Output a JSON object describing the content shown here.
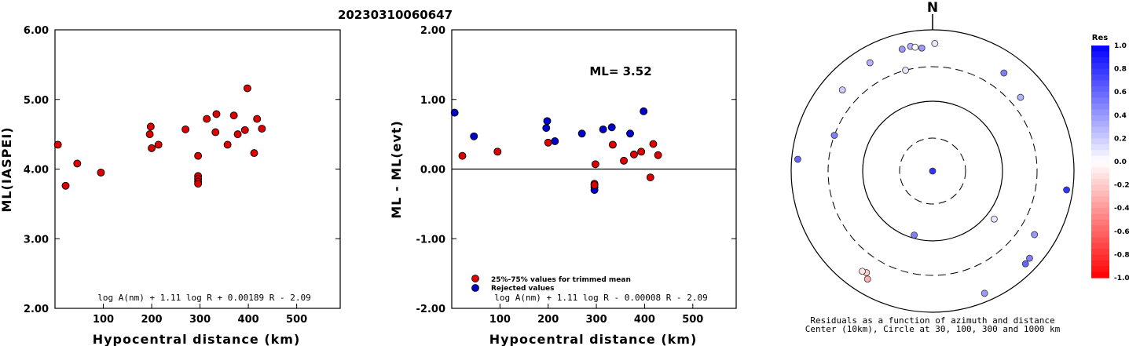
{
  "title": "20230310060647",
  "chart_data": [
    {
      "type": "scatter",
      "ylabel": "ML(IASPEI)",
      "xlabel": "Hypocentral distance (km)",
      "xlim": [
        0,
        590
      ],
      "ylim": [
        2.0,
        6.0
      ],
      "x_ticks": [
        "100",
        "200",
        "300",
        "400",
        "500"
      ],
      "y_ticks": [
        "6.00",
        "5.00",
        "4.00",
        "3.00",
        "2.00"
      ],
      "formula": "log A(nm) + 1.11 log R + 0.00189 R - 2.09",
      "color": "#dd0000",
      "points": [
        [
          6,
          4.35
        ],
        [
          22,
          3.76
        ],
        [
          46,
          4.08
        ],
        [
          95,
          3.95
        ],
        [
          196,
          4.5
        ],
        [
          198,
          4.61
        ],
        [
          200,
          4.3
        ],
        [
          214,
          4.35
        ],
        [
          270,
          4.57
        ],
        [
          296,
          4.19
        ],
        [
          296,
          3.9
        ],
        [
          296,
          3.86
        ],
        [
          296,
          3.82
        ],
        [
          296,
          3.79
        ],
        [
          314,
          4.72
        ],
        [
          332,
          4.53
        ],
        [
          334,
          4.79
        ],
        [
          357,
          4.35
        ],
        [
          370,
          4.77
        ],
        [
          378,
          4.5
        ],
        [
          393,
          4.56
        ],
        [
          398,
          5.16
        ],
        [
          412,
          4.23
        ],
        [
          418,
          4.72
        ],
        [
          428,
          4.58
        ]
      ]
    },
    {
      "type": "scatter",
      "ylabel": "ML - ML(evt)",
      "xlabel": "Hypocentral distance (km)",
      "xlim": [
        0,
        590
      ],
      "ylim": [
        -2.0,
        2.0
      ],
      "x_ticks": [
        "100",
        "200",
        "300",
        "400",
        "500"
      ],
      "y_ticks": [
        "2.00",
        "1.00",
        "0.00",
        "-1.00",
        "-2.00"
      ],
      "formula": "log A(nm) + 1.11 log R - 0.00008 R - 2.09",
      "annotation": "ML= 3.52",
      "legend": [
        {
          "label": "25%-75% values for trimmed mean",
          "color": "#dd0000"
        },
        {
          "label": "Rejected values",
          "color": "#0000cc"
        }
      ],
      "points_trimmed": [
        [
          22,
          0.19
        ],
        [
          95,
          0.25
        ],
        [
          200,
          0.38
        ],
        [
          298,
          0.07
        ],
        [
          296,
          -0.21
        ],
        [
          296,
          -0.23
        ],
        [
          334,
          0.35
        ],
        [
          357,
          0.12
        ],
        [
          378,
          0.21
        ],
        [
          393,
          0.25
        ],
        [
          412,
          -0.12
        ],
        [
          418,
          0.36
        ],
        [
          428,
          0.2
        ]
      ],
      "points_rejected": [
        [
          6,
          0.81
        ],
        [
          46,
          0.47
        ],
        [
          196,
          0.59
        ],
        [
          198,
          0.69
        ],
        [
          214,
          0.4
        ],
        [
          270,
          0.51
        ],
        [
          296,
          -0.26
        ],
        [
          296,
          -0.3
        ],
        [
          314,
          0.57
        ],
        [
          332,
          0.6
        ],
        [
          370,
          0.51
        ],
        [
          398,
          0.83
        ]
      ]
    },
    {
      "type": "polar-scatter",
      "north_label": "N",
      "caption_line1": "Residuals as a function of azimuth and distance",
      "caption_line2": "Center (10km), Circle at 30, 100, 300 and 1000 km",
      "colorbar_title": "Res",
      "colorbar_ticks": [
        "1.0",
        "0.8",
        "0.6",
        "0.4",
        "0.2",
        "0.0",
        "-0.2",
        "-0.4",
        "-0.6",
        "-0.8",
        "-1.0"
      ],
      "points": [
        {
          "az": 0,
          "dist": 10,
          "res": 0.8
        },
        {
          "az": 345,
          "dist": 300,
          "res": 0.1
        },
        {
          "az": 346,
          "dist": 600,
          "res": 0.4
        },
        {
          "az": 350,
          "dist": 620,
          "res": 0.3
        },
        {
          "az": 352,
          "dist": 590,
          "res": 0.0
        },
        {
          "az": 355,
          "dist": 560,
          "res": 0.4
        },
        {
          "az": 1,
          "dist": 640,
          "res": 0.1
        },
        {
          "az": 312,
          "dist": 520,
          "res": 0.2
        },
        {
          "az": 330,
          "dist": 590,
          "res": 0.3
        },
        {
          "az": 290,
          "dist": 300,
          "res": 0.5
        },
        {
          "az": 275,
          "dist": 820,
          "res": 0.6
        },
        {
          "az": 36,
          "dist": 520,
          "res": 0.5
        },
        {
          "az": 50,
          "dist": 420,
          "res": 0.3
        },
        {
          "az": 98,
          "dist": 820,
          "res": 0.8
        },
        {
          "az": 128,
          "dist": 130,
          "res": 0.1
        },
        {
          "az": 196,
          "dist": 90,
          "res": 0.5
        },
        {
          "az": 122,
          "dist": 500,
          "res": 0.4
        },
        {
          "az": 132,
          "dist": 700,
          "res": 0.5
        },
        {
          "az": 135,
          "dist": 720,
          "res": 0.6
        },
        {
          "az": 157,
          "dist": 760,
          "res": 0.4
        },
        {
          "az": 213,
          "dist": 520,
          "res": -0.2
        },
        {
          "az": 215,
          "dist": 540,
          "res": -0.1
        },
        {
          "az": 211,
          "dist": 610,
          "res": -0.3
        }
      ]
    }
  ]
}
